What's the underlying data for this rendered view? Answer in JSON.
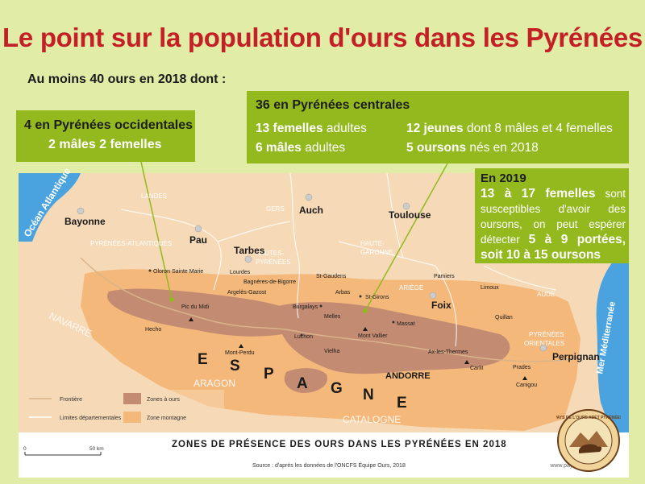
{
  "title": "Le point sur la population d'ours dans les Pyrénées",
  "subtitle": "Au moins 40 ours en 2018 dont :",
  "callout_west": {
    "line1": "4 en Pyrénées occidentales",
    "line2": "2 mâles 2 femelles"
  },
  "callout_center": {
    "heading": "36 en Pyrénées centrales",
    "stats": [
      {
        "value": "13 femelles",
        "text": " adultes"
      },
      {
        "value": "6 mâles",
        "text": " adultes"
      },
      {
        "value": "12 jeunes",
        "text": " dont 8 mâles et 4 femelles"
      },
      {
        "value": "5 oursons",
        "text": " nés en 2018"
      }
    ]
  },
  "callout_2019": {
    "heading": "En 2019",
    "b1": "13 à 17 femelles",
    "t1": " sont susceptibles d'avoir des oursons, on peut espérer détecter ",
    "b2": "5 à 9 portées, soit 10 à 15 oursons"
  },
  "map": {
    "regions": {
      "ocean": "Océan Atlantique",
      "mer": "Mer Méditerranée",
      "espagne": [
        "E",
        "S",
        "P",
        "A",
        "G",
        "N",
        "E"
      ],
      "andorre": "ANDORRE",
      "navarre": "NAVARRE",
      "aragon": "ARAGON",
      "catalogne": "CATALOGNE"
    },
    "departments": [
      "LANDES",
      "GERS",
      "PYRÉNÉES-ATLANTIQUES",
      "HAUTES-",
      "PYRÉNÉES",
      "HAUTE-",
      "GARONNE",
      "ARIÈGE",
      "AUDE",
      "PYRÉNÉES",
      "ORIENTALES"
    ],
    "cities_major": [
      "Bayonne",
      "Pau",
      "Tarbes",
      "Auch",
      "Toulouse",
      "Foix",
      "Perpignan"
    ],
    "towns": [
      "Oloron Sainte Marie",
      "Lourdes",
      "Bagnères-de-Bigorre",
      "Argelès-Gazost",
      "St-Gaudens",
      "Pamiers",
      "Limoux",
      "Quillan",
      "Arbas",
      "St-Girons",
      "Burgalays",
      "Melles",
      "Luchon",
      "Massat",
      "Vielha",
      "Ax-les-Thermes",
      "Prades",
      "Hecho"
    ],
    "peaks": [
      "Pic du Midi",
      "Mont Vallier",
      "Mont-Perdu",
      "Carlit",
      "Canigou"
    ]
  },
  "legend": {
    "frontiere": "Frontière",
    "limites": "Limites départementales",
    "zones_ours": "Zones à ours",
    "zone_montagne": "Zone montagne"
  },
  "scale": {
    "zero": "0",
    "km": "50 km"
  },
  "bottom_title": "ZONES DE PRÉSENCE DES OURS DANS LES PYRÉNÉES EN 2018",
  "source": "Source : d'après les données de l'ONCFS Équipe Ours, 2018",
  "website": "www.paysdelours.com",
  "logo": "PAYS DE L'OURS ADET PYRÉNÉES",
  "colors": {
    "title": "#c41f24",
    "callout": "#93b91e",
    "land": "#f5d6b0",
    "mountain": "#f5b87b",
    "bear_zone": "#c48b73",
    "sea": "#4aa3df",
    "background": "#e1eca6"
  }
}
